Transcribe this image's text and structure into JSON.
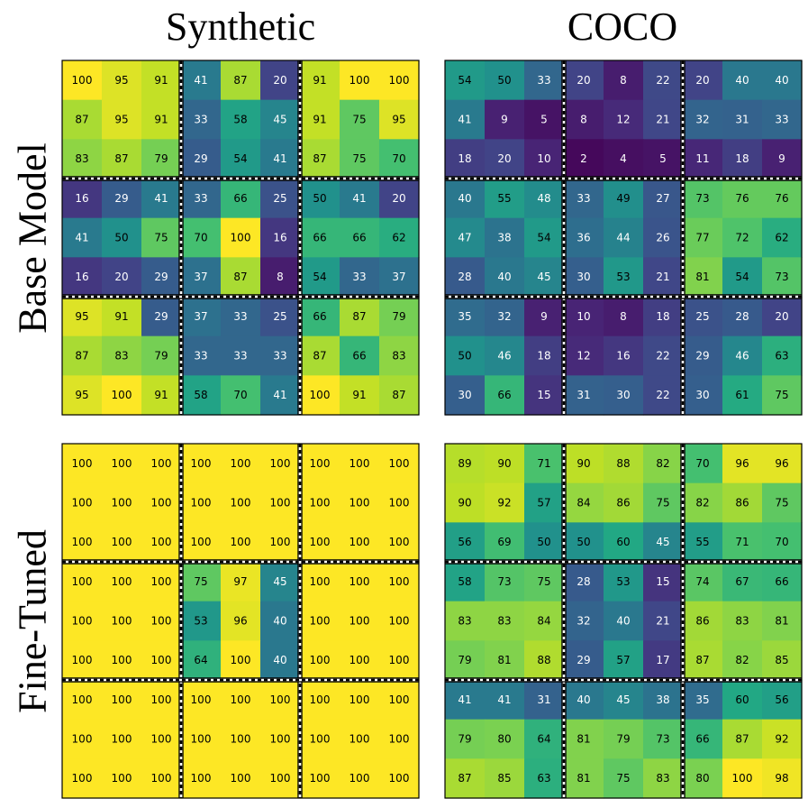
{
  "columns": [
    "Synthetic",
    "COCO"
  ],
  "rows": [
    "Base Model",
    "Fine-Tuned"
  ],
  "chart_data": [
    {
      "type": "heatmap",
      "column": "Synthetic",
      "row": "Base Model",
      "values": [
        [
          100,
          95,
          91,
          41,
          87,
          20,
          91,
          100,
          100
        ],
        [
          87,
          95,
          91,
          33,
          58,
          45,
          91,
          75,
          95
        ],
        [
          83,
          87,
          79,
          29,
          54,
          41,
          87,
          75,
          70
        ],
        [
          16,
          29,
          41,
          33,
          66,
          25,
          50,
          41,
          20
        ],
        [
          41,
          50,
          75,
          70,
          100,
          16,
          66,
          66,
          62
        ],
        [
          16,
          20,
          29,
          37,
          87,
          8,
          54,
          33,
          37
        ],
        [
          95,
          91,
          29,
          37,
          33,
          25,
          66,
          87,
          79
        ],
        [
          87,
          83,
          79,
          33,
          33,
          33,
          87,
          66,
          83
        ],
        [
          95,
          100,
          91,
          58,
          70,
          41,
          100,
          91,
          87
        ]
      ],
      "colormap": "viridis",
      "vrange": [
        0,
        100
      ]
    },
    {
      "type": "heatmap",
      "column": "COCO",
      "row": "Base Model",
      "values": [
        [
          54,
          50,
          33,
          20,
          8,
          22,
          20,
          40,
          40
        ],
        [
          41,
          9,
          5,
          8,
          12,
          21,
          32,
          31,
          33
        ],
        [
          18,
          20,
          10,
          2,
          4,
          5,
          11,
          18,
          9
        ],
        [
          40,
          55,
          48,
          33,
          49,
          27,
          73,
          76,
          76
        ],
        [
          47,
          38,
          54,
          36,
          44,
          26,
          77,
          72,
          62
        ],
        [
          28,
          40,
          45,
          30,
          53,
          21,
          81,
          54,
          73
        ],
        [
          35,
          32,
          9,
          10,
          8,
          18,
          25,
          28,
          20
        ],
        [
          50,
          46,
          18,
          12,
          16,
          22,
          29,
          46,
          63
        ],
        [
          30,
          66,
          15,
          31,
          30,
          22,
          30,
          61,
          75
        ]
      ],
      "colormap": "viridis",
      "vrange": [
        0,
        100
      ]
    },
    {
      "type": "heatmap",
      "column": "Synthetic",
      "row": "Fine-Tuned",
      "values": [
        [
          100,
          100,
          100,
          100,
          100,
          100,
          100,
          100,
          100
        ],
        [
          100,
          100,
          100,
          100,
          100,
          100,
          100,
          100,
          100
        ],
        [
          100,
          100,
          100,
          100,
          100,
          100,
          100,
          100,
          100
        ],
        [
          100,
          100,
          100,
          75,
          97,
          45,
          100,
          100,
          100
        ],
        [
          100,
          100,
          100,
          53,
          96,
          40,
          100,
          100,
          100
        ],
        [
          100,
          100,
          100,
          64,
          100,
          40,
          100,
          100,
          100
        ],
        [
          100,
          100,
          100,
          100,
          100,
          100,
          100,
          100,
          100
        ],
        [
          100,
          100,
          100,
          100,
          100,
          100,
          100,
          100,
          100
        ],
        [
          100,
          100,
          100,
          100,
          100,
          100,
          100,
          100,
          100
        ]
      ],
      "colormap": "viridis",
      "vrange": [
        0,
        100
      ]
    },
    {
      "type": "heatmap",
      "column": "COCO",
      "row": "Fine-Tuned",
      "values": [
        [
          89,
          90,
          71,
          90,
          88,
          82,
          70,
          96,
          96
        ],
        [
          90,
          92,
          57,
          84,
          86,
          75,
          82,
          86,
          75
        ],
        [
          56,
          69,
          50,
          50,
          60,
          45,
          55,
          71,
          70
        ],
        [
          58,
          73,
          75,
          28,
          53,
          15,
          74,
          67,
          66
        ],
        [
          83,
          83,
          84,
          32,
          40,
          21,
          86,
          83,
          81
        ],
        [
          79,
          81,
          88,
          29,
          57,
          17,
          87,
          82,
          85
        ],
        [
          41,
          41,
          31,
          40,
          45,
          38,
          35,
          60,
          56
        ],
        [
          79,
          80,
          64,
          81,
          79,
          73,
          66,
          87,
          92
        ],
        [
          87,
          85,
          63,
          81,
          75,
          83,
          80,
          100,
          98
        ]
      ],
      "colormap": "viridis",
      "vrange": [
        0,
        100
      ]
    }
  ]
}
